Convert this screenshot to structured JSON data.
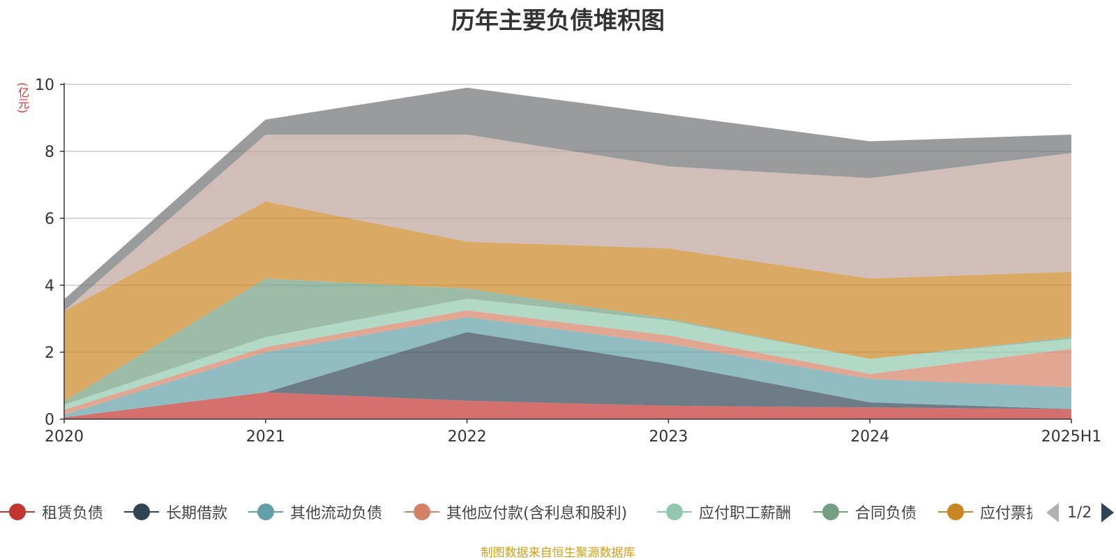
{
  "chart_data": {
    "type": "area",
    "stacked": true,
    "title": "历年主要负债堆积图",
    "ylabel": "(亿元)",
    "xlabel": "",
    "ylim": [
      0,
      10
    ],
    "yticks": [
      0,
      2,
      4,
      6,
      8,
      10
    ],
    "grid": true,
    "categories": [
      "2020",
      "2021",
      "2022",
      "2023",
      "2024",
      "2025H1"
    ],
    "series": [
      {
        "name": "租赁负债",
        "color": "#c23531",
        "values": [
          0.05,
          0.8,
          0.55,
          0.4,
          0.35,
          0.3
        ]
      },
      {
        "name": "长期借款",
        "color": "#2f4554",
        "values": [
          0.0,
          0.0,
          2.05,
          1.25,
          0.15,
          0.0
        ]
      },
      {
        "name": "其他流动负债",
        "color": "#61a0a8",
        "values": [
          0.08,
          1.2,
          0.45,
          0.6,
          0.7,
          0.65
        ]
      },
      {
        "name": "其他应付款(含利息和股利)",
        "color": "#d48265",
        "values": [
          0.15,
          0.15,
          0.2,
          0.25,
          0.15,
          1.15
        ]
      },
      {
        "name": "应付职工薪酬",
        "color": "#91c7ae",
        "values": [
          0.15,
          0.3,
          0.35,
          0.45,
          0.45,
          0.3
        ]
      },
      {
        "name": "合同负债",
        "color": "#749f83",
        "values": [
          0.1,
          1.75,
          0.3,
          0.05,
          0.0,
          0.05
        ]
      },
      {
        "name": "应付票据",
        "color": "#ca8622",
        "values": [
          2.7,
          2.3,
          1.4,
          2.1,
          2.4,
          1.95
        ]
      },
      {
        "name": "",
        "color": "#bda29a",
        "values": [
          0.0,
          2.0,
          3.2,
          2.45,
          3.0,
          3.55
        ]
      },
      {
        "name": "",
        "color": "#6e7074",
        "values": [
          0.35,
          0.45,
          1.4,
          1.55,
          1.1,
          0.55
        ]
      }
    ]
  },
  "legend": {
    "items": [
      {
        "label": "租赁负债",
        "color": "#c23531"
      },
      {
        "label": "长期借款",
        "color": "#2f4554"
      },
      {
        "label": "其他流动负债",
        "color": "#61a0a8"
      },
      {
        "label": "其他应付款(含利息和股利)",
        "color": "#d48265"
      },
      {
        "label": "应付职工薪酬",
        "color": "#91c7ae"
      },
      {
        "label": "合同负债",
        "color": "#749f83"
      },
      {
        "label": "应付票据",
        "color": "#ca8622"
      }
    ],
    "page": "1/2"
  },
  "source_note": "制图数据来自恒生聚源数据库"
}
